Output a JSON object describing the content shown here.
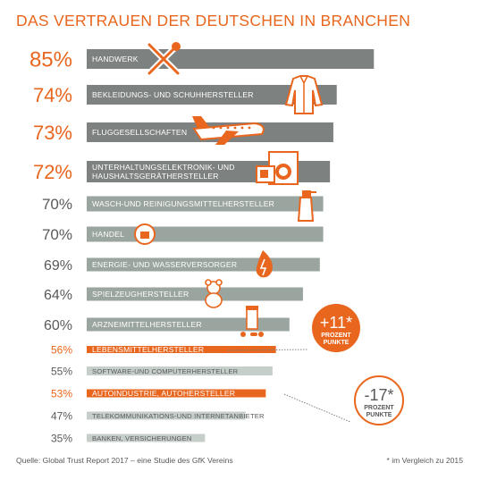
{
  "chart_data": {
    "type": "bar",
    "orientation": "horizontal",
    "title": "DAS VERTRAUEN DER DEUTSCHEN IN BRANCHEN",
    "categories": [
      "HANDWERK",
      "BEKLEIDUNGS- UND SCHUHHERSTELLER",
      "FLUGGESELLSCHAFTEN",
      "UNTERHALTUNGSELEKTRONIK- UND HAUSHALTSGERÄTHERSTELLER",
      "WASCH-UND REINIGUNGSMITTELHERSTELLER",
      "HANDEL",
      "ENERGIE- UND WASSERVERSORGER",
      "SPIELZEUGHERSTELLER",
      "ARZNEIMITTELHERSTELLER",
      "LEBENSMITTELHERSTELLER",
      "SOFTWARE-UND COMPUTERHERSTELLER",
      "AUTOINDUSTRIE, AUTOHERSTELLER",
      "TELEKOMMUNIKATIONS-UND INTERNETANBIETER",
      "BANKEN, VERSICHERUNGEN"
    ],
    "values": [
      85,
      74,
      73,
      72,
      70,
      70,
      69,
      64,
      60,
      56,
      55,
      53,
      47,
      35
    ],
    "value_labels": [
      "85%",
      "74%",
      "73%",
      "72%",
      "70%",
      "70%",
      "69%",
      "64%",
      "60%",
      "56%",
      "55%",
      "53%",
      "47%",
      "35%"
    ],
    "highlighted": [
      0,
      1,
      2,
      3,
      9,
      11
    ],
    "annotations": [
      {
        "value": "+11*",
        "text": "PROZENT PUNKTE",
        "category": "LEBENSMITTELHERSTELLER"
      },
      {
        "value": "-17*",
        "text": "PROZENT PUNKTE",
        "category": "AUTOINDUSTRIE, AUTOHERSTELLER"
      }
    ],
    "colors": {
      "orange": "#e8661e",
      "dark_gray": "#7d8180",
      "sage": "#9aa59f",
      "light": "#c6cec9",
      "text": "#58595b"
    }
  },
  "footer": {
    "source": "Quelle: Global Trust Report 2017 – eine Studie des GfK Vereins",
    "note": "* im Vergleich zu 2015"
  },
  "icons": [
    "tools-icon",
    "shirt-icon",
    "airplane-icon",
    "appliances-icon",
    "spray-bottle-icon",
    "shop-icon",
    "energy-icon",
    "teddy-bear-icon",
    "medicine-icon"
  ]
}
